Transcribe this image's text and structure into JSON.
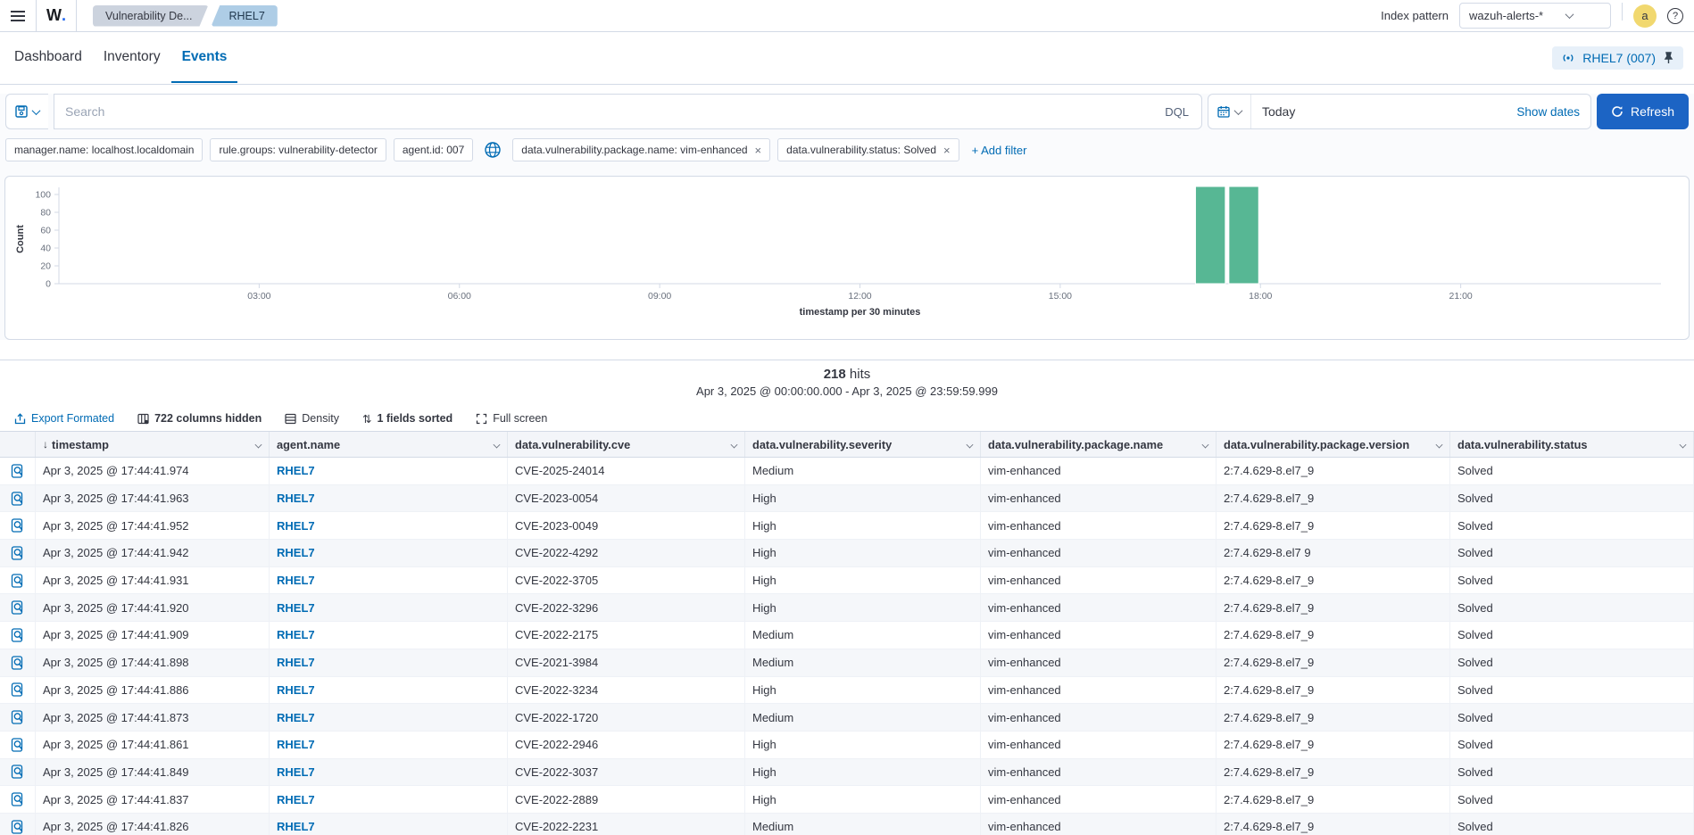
{
  "topbar": {
    "logo_text": "W",
    "logo_dot": ".",
    "breadcrumbs": [
      {
        "label": "Vulnerability De..."
      },
      {
        "label": "RHEL7"
      }
    ],
    "index_pattern_label": "Index pattern",
    "index_pattern_value": "wazuh-alerts-*",
    "avatar_initial": "a",
    "help_glyph": "?"
  },
  "tabs": {
    "items": [
      {
        "label": "Dashboard"
      },
      {
        "label": "Inventory"
      },
      {
        "label": "Events"
      }
    ],
    "active": "Events",
    "agent_chip_label": "RHEL7 (007)"
  },
  "search": {
    "placeholder": "Search",
    "query_language": "DQL",
    "date_value": "Today",
    "show_dates_label": "Show dates",
    "refresh_label": "Refresh"
  },
  "filters": {
    "pills": [
      {
        "label": "manager.name: localhost.localdomain",
        "removable": false
      },
      {
        "label": "rule.groups: vulnerability-detector",
        "removable": false
      },
      {
        "label": "agent.id: 007",
        "removable": false
      },
      {
        "label": "data.vulnerability.package.name: vim-enhanced",
        "removable": true
      },
      {
        "label": "data.vulnerability.status: Solved",
        "removable": true
      }
    ],
    "add_filter_label": "+ Add filter",
    "remove_glyph": "×"
  },
  "chart_data": {
    "type": "bar",
    "title": "",
    "ylabel": "Count",
    "xlabel": "timestamp per 30 minutes",
    "y_ticks": [
      0,
      20,
      40,
      60,
      80,
      100
    ],
    "ylim": [
      0,
      110
    ],
    "x_ticks": [
      "03:00",
      "06:00",
      "09:00",
      "12:00",
      "15:00",
      "18:00",
      "21:00"
    ],
    "x_domain_hours": [
      0,
      24
    ],
    "bucket_minutes": 30,
    "bars": [
      {
        "time": "17:00",
        "value": 109
      },
      {
        "time": "17:30",
        "value": 109
      }
    ],
    "bar_color": "#57b794",
    "grid": false,
    "legend": "none"
  },
  "results": {
    "hits_count": "218",
    "hits_label": "hits",
    "date_range": "Apr 3, 2025 @ 00:00:00.000 - Apr 3, 2025 @ 23:59:59.999"
  },
  "toolbar": {
    "export_label": "Export Formated",
    "columns_hidden_label": "722 columns hidden",
    "density_label": "Density",
    "sorted_label": "1 fields sorted",
    "fullscreen_label": "Full screen",
    "sort_glyph": "⇅"
  },
  "table": {
    "sort_arrow": "↓",
    "columns": [
      "timestamp",
      "agent.name",
      "data.vulnerability.cve",
      "data.vulnerability.severity",
      "data.vulnerability.package.name",
      "data.vulnerability.package.version",
      "data.vulnerability.status"
    ],
    "rows": [
      {
        "timestamp": "Apr 3, 2025 @ 17:44:41.974",
        "agent": "RHEL7",
        "cve": "CVE-2025-24014",
        "severity": "Medium",
        "package": "vim-enhanced",
        "version": "2:7.4.629-8.el7_9",
        "status": "Solved"
      },
      {
        "timestamp": "Apr 3, 2025 @ 17:44:41.963",
        "agent": "RHEL7",
        "cve": "CVE-2023-0054",
        "severity": "High",
        "package": "vim-enhanced",
        "version": "2:7.4.629-8.el7_9",
        "status": "Solved"
      },
      {
        "timestamp": "Apr 3, 2025 @ 17:44:41.952",
        "agent": "RHEL7",
        "cve": "CVE-2023-0049",
        "severity": "High",
        "package": "vim-enhanced",
        "version": "2:7.4.629-8.el7_9",
        "status": "Solved"
      },
      {
        "timestamp": "Apr 3, 2025 @ 17:44:41.942",
        "agent": "RHEL7",
        "cve": "CVE-2022-4292",
        "severity": "High",
        "package": "vim-enhanced",
        "version": "2:7.4.629-8.el7 9",
        "status": "Solved"
      },
      {
        "timestamp": "Apr 3, 2025 @ 17:44:41.931",
        "agent": "RHEL7",
        "cve": "CVE-2022-3705",
        "severity": "High",
        "package": "vim-enhanced",
        "version": "2:7.4.629-8.el7_9",
        "status": "Solved"
      },
      {
        "timestamp": "Apr 3, 2025 @ 17:44:41.920",
        "agent": "RHEL7",
        "cve": "CVE-2022-3296",
        "severity": "High",
        "package": "vim-enhanced",
        "version": "2:7.4.629-8.el7_9",
        "status": "Solved"
      },
      {
        "timestamp": "Apr 3, 2025 @ 17:44:41.909",
        "agent": "RHEL7",
        "cve": "CVE-2022-2175",
        "severity": "Medium",
        "package": "vim-enhanced",
        "version": "2:7.4.629-8.el7_9",
        "status": "Solved"
      },
      {
        "timestamp": "Apr 3, 2025 @ 17:44:41.898",
        "agent": "RHEL7",
        "cve": "CVE-2021-3984",
        "severity": "Medium",
        "package": "vim-enhanced",
        "version": "2:7.4.629-8.el7_9",
        "status": "Solved"
      },
      {
        "timestamp": "Apr 3, 2025 @ 17:44:41.886",
        "agent": "RHEL7",
        "cve": "CVE-2022-3234",
        "severity": "High",
        "package": "vim-enhanced",
        "version": "2:7.4.629-8.el7_9",
        "status": "Solved"
      },
      {
        "timestamp": "Apr 3, 2025 @ 17:44:41.873",
        "agent": "RHEL7",
        "cve": "CVE-2022-1720",
        "severity": "Medium",
        "package": "vim-enhanced",
        "version": "2:7.4.629-8.el7_9",
        "status": "Solved"
      },
      {
        "timestamp": "Apr 3, 2025 @ 17:44:41.861",
        "agent": "RHEL7",
        "cve": "CVE-2022-2946",
        "severity": "High",
        "package": "vim-enhanced",
        "version": "2:7.4.629-8.el7_9",
        "status": "Solved"
      },
      {
        "timestamp": "Apr 3, 2025 @ 17:44:41.849",
        "agent": "RHEL7",
        "cve": "CVE-2022-3037",
        "severity": "High",
        "package": "vim-enhanced",
        "version": "2:7.4.629-8.el7_9",
        "status": "Solved"
      },
      {
        "timestamp": "Apr 3, 2025 @ 17:44:41.837",
        "agent": "RHEL7",
        "cve": "CVE-2022-2889",
        "severity": "High",
        "package": "vim-enhanced",
        "version": "2:7.4.629-8.el7_9",
        "status": "Solved"
      },
      {
        "timestamp": "Apr 3, 2025 @ 17:44:41.826",
        "agent": "RHEL7",
        "cve": "CVE-2022-2231",
        "severity": "Medium",
        "package": "vim-enhanced",
        "version": "2:7.4.629-8.el7_9",
        "status": "Solved"
      }
    ]
  },
  "colors": {
    "accent": "#006bb4",
    "refresh_button": "#1c64c4",
    "bar": "#57b794",
    "avatar_bg": "#f1d86f"
  }
}
